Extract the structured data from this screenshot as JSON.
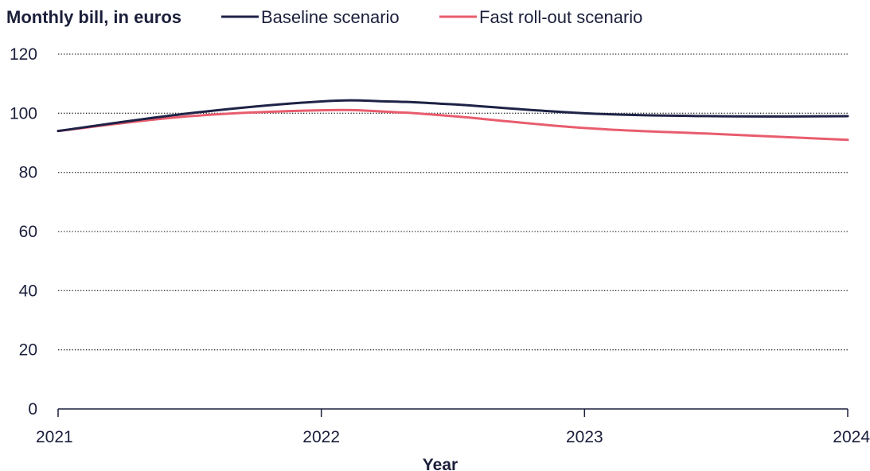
{
  "chart_data": {
    "type": "line",
    "title": "Monthly bill, in euros",
    "xlabel": "Year",
    "ylabel": "",
    "x": [
      2021,
      2022,
      2023,
      2024
    ],
    "x_tick_labels": [
      "2021",
      "2022",
      "2023",
      "2024"
    ],
    "y_ticks": [
      0,
      20,
      40,
      60,
      80,
      100,
      120
    ],
    "y_tick_labels": [
      "0",
      "20",
      "40",
      "60",
      "80",
      "100",
      "120"
    ],
    "ylim": [
      0,
      120
    ],
    "xlim": [
      2021,
      2024
    ],
    "grid": true,
    "legend_position": "top",
    "series": [
      {
        "name": "Baseline scenario",
        "color": "#1e2246",
        "x": [
          2021,
          2021.5,
          2022,
          2022.25,
          2022.5,
          2023,
          2023.5,
          2024
        ],
        "values": [
          94,
          100,
          104,
          104,
          103,
          100,
          99,
          99
        ]
      },
      {
        "name": "Fast roll-out scenario",
        "color": "#e85d6e",
        "x": [
          2021,
          2021.5,
          2022,
          2022.25,
          2022.5,
          2023,
          2023.5,
          2024
        ],
        "values": [
          94,
          99,
          101,
          100.5,
          99,
          95,
          93,
          91
        ]
      }
    ]
  }
}
